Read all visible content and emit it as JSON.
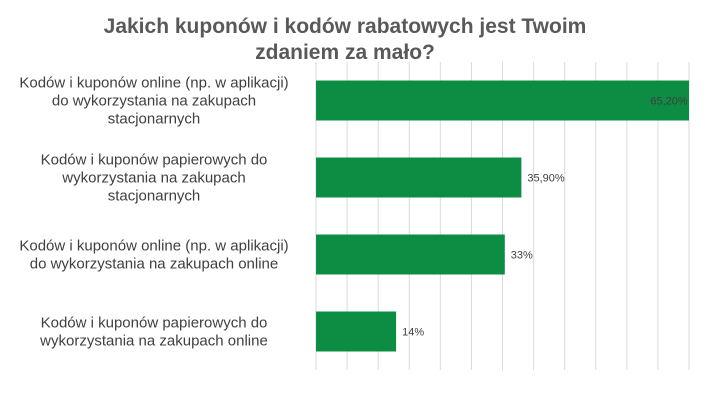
{
  "chart_data": {
    "type": "bar",
    "orientation": "horizontal",
    "title_lines": [
      "Jakich kuponów i kodów rabatowych jest Twoim",
      "zdaniem za mało?"
    ],
    "categories": [
      [
        "Kodów i kuponów online (np. w aplikacji)",
        "do wykorzystania na zakupach",
        "stacjonarnych"
      ],
      [
        "Kodów i kuponów papierowych do",
        "wykorzystania na zakupach",
        "stacjonarnych"
      ],
      [
        "Kodów i kuponów online (np. w aplikacji)",
        "do wykorzystania na zakupach online"
      ],
      [
        "Kodów i kuponów papierowych do",
        "wykorzystania na zakupach online"
      ]
    ],
    "values": [
      65.2,
      35.9,
      33,
      14
    ],
    "value_labels": [
      "65,20%",
      "35,90%",
      "33%",
      "14%"
    ],
    "xlim": [
      0,
      65.2
    ],
    "grid": true,
    "bar_color": "#0d8c43",
    "grid_color": "#d9d9d9"
  }
}
